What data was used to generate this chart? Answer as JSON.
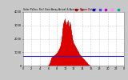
{
  "title": "Solar PV/Inv. Perf. East Array Actual & Average Power Output",
  "bg_color": "#c8c8c8",
  "plot_bg_color": "#ffffff",
  "grid_color": "#a0a0a0",
  "bar_color": "#dd0000",
  "avg_line_color": "#2222cc",
  "text_color": "#000000",
  "legend_colors_top": [
    "#ff0000",
    "#ff4444",
    "#ffaaaa",
    "#0000ff",
    "#4444ff",
    "#cc00cc",
    "#ff88ff",
    "#00aaaa"
  ],
  "ylim": [
    0,
    4000
  ],
  "xlim": [
    0,
    287
  ],
  "avg_value": 700,
  "bar_values": [
    0,
    0,
    0,
    0,
    0,
    0,
    0,
    0,
    0,
    0,
    0,
    0,
    0,
    0,
    0,
    0,
    0,
    0,
    0,
    0,
    0,
    0,
    0,
    0,
    0,
    0,
    0,
    0,
    0,
    0,
    0,
    0,
    0,
    0,
    0,
    0,
    0,
    0,
    0,
    0,
    0,
    0,
    0,
    0,
    0,
    0,
    0,
    0,
    0,
    0,
    0,
    0,
    0,
    0,
    0,
    0,
    0,
    0,
    0,
    0,
    0,
    0,
    0,
    0,
    0,
    0,
    0,
    0,
    5,
    10,
    20,
    30,
    50,
    80,
    120,
    180,
    260,
    350,
    440,
    520,
    580,
    620,
    650,
    680,
    700,
    720,
    740,
    750,
    760,
    780,
    800,
    820,
    850,
    880,
    910,
    940,
    970,
    1000,
    1050,
    1100,
    1150,
    1200,
    1250,
    1300,
    1350,
    1400,
    1500,
    1600,
    1800,
    2000,
    2200,
    2500,
    2800,
    3000,
    3100,
    3200,
    3300,
    3400,
    3500,
    3400,
    3300,
    3200,
    3100,
    3000,
    3100,
    3200,
    3300,
    3400,
    3200,
    3000,
    2800,
    3000,
    3200,
    3300,
    3100,
    2900,
    2700,
    2500,
    2300,
    2100,
    2000,
    1900,
    1800,
    1700,
    1650,
    1600,
    1550,
    1500,
    1450,
    1400,
    1350,
    1300,
    1250,
    1200,
    1150,
    1100,
    1050,
    1000,
    950,
    900,
    860,
    820,
    790,
    760,
    730,
    700,
    670,
    640,
    610,
    580,
    550,
    520,
    490,
    460,
    430,
    400,
    370,
    340,
    310,
    280,
    250,
    220,
    190,
    160,
    130,
    100,
    75,
    55,
    40,
    30,
    20,
    15,
    10,
    5,
    0,
    0,
    0,
    0,
    0,
    0,
    0,
    0,
    0,
    0,
    0,
    0,
    0,
    0,
    0,
    0,
    0,
    0,
    0,
    0,
    0,
    0,
    0,
    0,
    0,
    0,
    0,
    0,
    0,
    0,
    0,
    0,
    0,
    0,
    0,
    0,
    0,
    0,
    0,
    0,
    0,
    0,
    0,
    0,
    0,
    0,
    0,
    0,
    0,
    0,
    0,
    0,
    0,
    0,
    0,
    0,
    0,
    0,
    0,
    0,
    0,
    0,
    0,
    0,
    0,
    0
  ],
  "ytick_values": [
    0,
    1000,
    2000,
    3000,
    4000
  ],
  "ytick_labels": [
    "0",
    "1000",
    "2000",
    "3000",
    "4000"
  ],
  "xtick_positions": [
    0,
    24,
    48,
    72,
    96,
    120,
    144,
    168,
    192,
    216,
    240,
    264,
    287
  ],
  "xtick_labels": [
    "0",
    "2",
    "4",
    "6",
    "8",
    "10",
    "12",
    "14",
    "16",
    "18",
    "20",
    "22",
    "0"
  ]
}
